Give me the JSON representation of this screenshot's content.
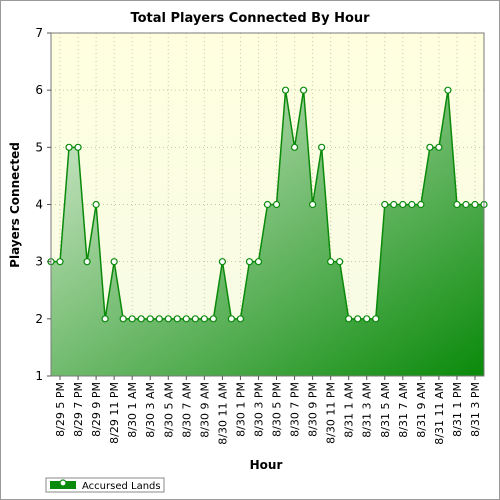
{
  "chart_data": {
    "type": "area",
    "title": "Total Players Connected By Hour",
    "xlabel": "Hour",
    "ylabel": "Players Connected",
    "ylim": [
      1,
      7
    ],
    "yticks": [
      1,
      2,
      3,
      4,
      5,
      6,
      7
    ],
    "x": [
      "8/29 4 PM",
      "8/29 5 PM",
      "8/29 6 PM",
      "8/29 7 PM",
      "8/29 8 PM",
      "8/29 9 PM",
      "8/29 10 PM",
      "8/29 11 PM",
      "8/30 12 AM",
      "8/30 1 AM",
      "8/30 2 AM",
      "8/30 3 AM",
      "8/30 4 AM",
      "8/30 5 AM",
      "8/30 6 AM",
      "8/30 7 AM",
      "8/30 8 AM",
      "8/30 9 AM",
      "8/30 10 AM",
      "8/30 11 AM",
      "8/30 12 PM",
      "8/30 1 PM",
      "8/30 2 PM",
      "8/30 3 PM",
      "8/30 4 PM",
      "8/30 5 PM",
      "8/30 6 PM",
      "8/30 7 PM",
      "8/30 8 PM",
      "8/30 9 PM",
      "8/30 10 PM",
      "8/30 11 PM",
      "8/31 12 AM",
      "8/31 1 AM",
      "8/31 2 AM",
      "8/31 3 AM",
      "8/31 4 AM",
      "8/31 5 AM",
      "8/31 6 AM",
      "8/31 7 AM",
      "8/31 8 AM",
      "8/31 9 AM",
      "8/31 10 AM",
      "8/31 11 AM",
      "8/31 12 PM",
      "8/31 1 PM",
      "8/31 2 PM",
      "8/31 3 PM",
      "8/31 4 PM"
    ],
    "xtick_labels": [
      "8/29 5 PM",
      "8/29 7 PM",
      "8/29 9 PM",
      "8/29 11 PM",
      "8/30 1 AM",
      "8/30 3 AM",
      "8/30 5 AM",
      "8/30 7 AM",
      "8/30 9 AM",
      "8/30 11 AM",
      "8/30 1 PM",
      "8/30 3 PM",
      "8/30 5 PM",
      "8/30 7 PM",
      "8/30 9 PM",
      "8/30 11 PM",
      "8/31 1 AM",
      "8/31 3 AM",
      "8/31 5 AM",
      "8/31 7 AM",
      "8/31 9 AM",
      "8/31 11 AM",
      "8/31 1 PM",
      "8/31 3 PM"
    ],
    "series": [
      {
        "name": "Accursed Lands",
        "values": [
          3,
          3,
          5,
          5,
          3,
          4,
          2,
          3,
          2,
          2,
          2,
          2,
          2,
          2,
          2,
          2,
          2,
          2,
          2,
          3,
          2,
          2,
          3,
          3,
          4,
          4,
          6,
          5,
          6,
          4,
          5,
          3,
          3,
          2,
          2,
          2,
          2,
          4,
          4,
          4,
          4,
          4,
          5,
          5,
          6,
          4,
          4,
          4,
          4
        ]
      }
    ],
    "grid": true,
    "legend_position": "bottom-left",
    "colors": {
      "line": "#0a8a0a",
      "marker_fill": "#ffffff",
      "area_light": "#d8ecd2",
      "area_dark": "#0a8a0a",
      "plot_bg_top": "#ffffe0",
      "plot_bg_bottom": "#f7fbe6",
      "grid": "#c9c9a8"
    }
  }
}
